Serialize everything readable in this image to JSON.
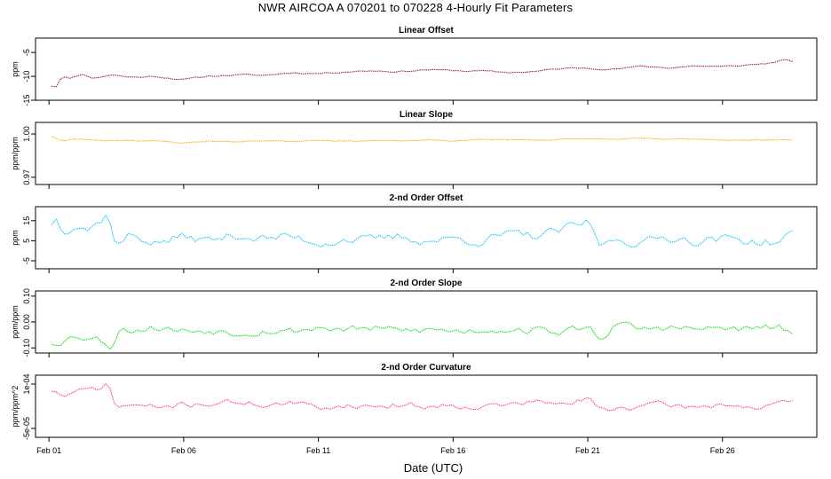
{
  "title": "NWR   AIRCOA A   070201 to 070228   4-Hourly Fit Parameters",
  "colors": {
    "linear_offset": "#b22222",
    "linear_slope": "#ffa500",
    "second_order_offset": "#00bfff",
    "second_order_slope": "#00dd00",
    "second_order_curvature": "#ff3366"
  },
  "chart_data": {
    "type": "line",
    "xlabel": "Date (UTC)",
    "x_range_days": [
      0.5,
      29.5
    ],
    "x_ticks": [
      {
        "day": 1,
        "label": "Feb 01"
      },
      {
        "day": 6,
        "label": "Feb 06"
      },
      {
        "day": 11,
        "label": "Feb 11"
      },
      {
        "day": 16,
        "label": "Feb 16"
      },
      {
        "day": 21,
        "label": "Feb 21"
      },
      {
        "day": 26,
        "label": "Feb 26"
      }
    ],
    "panels": [
      {
        "key": "linear_offset",
        "title": "Linear Offset",
        "ylabel": "ppm",
        "ylim": [
          -15,
          -2
        ],
        "yticks": [
          {
            "v": -15,
            "label": "-15"
          },
          {
            "v": -10,
            "label": "-10"
          },
          {
            "v": -5,
            "label": "-5"
          }
        ],
        "kp": [
          [
            1.1,
            -12.0
          ],
          [
            1.3,
            -12.1
          ],
          [
            1.5,
            -9.6
          ],
          [
            1.8,
            -10.5
          ],
          [
            2.2,
            -9.5
          ],
          [
            2.7,
            -10.4
          ],
          [
            3.3,
            -9.6
          ],
          [
            4,
            -10.2
          ],
          [
            5,
            -10.0
          ],
          [
            6,
            -10.7
          ],
          [
            7,
            -9.9
          ],
          [
            8,
            -9.7
          ],
          [
            9,
            -9.8
          ],
          [
            10,
            -9.2
          ],
          [
            11,
            -9.4
          ],
          [
            12,
            -9.0
          ],
          [
            13,
            -8.8
          ],
          [
            14,
            -9.0
          ],
          [
            15,
            -8.6
          ],
          [
            16,
            -8.8
          ],
          [
            17,
            -8.9
          ],
          [
            18,
            -9.2
          ],
          [
            19,
            -9.0
          ],
          [
            20,
            -8.4
          ],
          [
            21,
            -8.2
          ],
          [
            22,
            -8.5
          ],
          [
            23,
            -7.9
          ],
          [
            24,
            -8.2
          ],
          [
            25,
            -7.8
          ],
          [
            26,
            -8.0
          ],
          [
            27,
            -7.6
          ],
          [
            27.8,
            -7.2
          ],
          [
            28.2,
            -6.6
          ],
          [
            28.6,
            -6.9
          ]
        ],
        "amp": 0.35,
        "seed": 11
      },
      {
        "key": "linear_slope",
        "title": "Linear Slope",
        "ylabel": "ppm/ppm",
        "ylim": [
          0.965,
          1.008
        ],
        "yticks": [
          {
            "v": 0.97,
            "label": "0.97"
          },
          {
            "v": 1.0,
            "label": "1.00"
          }
        ],
        "kp": [
          [
            1.1,
            0.9985
          ],
          [
            1.5,
            0.995
          ],
          [
            2,
            0.9965
          ],
          [
            3,
            0.9955
          ],
          [
            4,
            0.9958
          ],
          [
            5,
            0.995
          ],
          [
            6,
            0.9938
          ],
          [
            7,
            0.9952
          ],
          [
            8,
            0.9945
          ],
          [
            9,
            0.9955
          ],
          [
            10,
            0.9948
          ],
          [
            11,
            0.996
          ],
          [
            12,
            0.995
          ],
          [
            13,
            0.9955
          ],
          [
            14,
            0.995
          ],
          [
            15,
            0.9958
          ],
          [
            16,
            0.9952
          ],
          [
            17,
            0.996
          ],
          [
            18,
            0.9962
          ],
          [
            19,
            0.9958
          ],
          [
            20,
            0.9962
          ],
          [
            21,
            0.9966
          ],
          [
            22,
            0.9963
          ],
          [
            23,
            0.9968
          ],
          [
            24,
            0.9962
          ],
          [
            25,
            0.9966
          ],
          [
            26,
            0.996
          ],
          [
            27,
            0.9956
          ],
          [
            28,
            0.9962
          ],
          [
            28.6,
            0.9958
          ]
        ],
        "amp": 0.0007,
        "seed": 23
      },
      {
        "key": "second_order_offset",
        "title": "2-nd Order Offset",
        "ylabel": "ppm",
        "ylim": [
          -9,
          22
        ],
        "yticks": [
          {
            "v": -5,
            "label": "-5"
          },
          {
            "v": 5,
            "label": "5"
          },
          {
            "v": 15,
            "label": "15"
          }
        ],
        "kp": [
          [
            1.1,
            14
          ],
          [
            1.3,
            16
          ],
          [
            1.5,
            10
          ],
          [
            2,
            14
          ],
          [
            2.5,
            11
          ],
          [
            3,
            16
          ],
          [
            3.2,
            19
          ],
          [
            3.5,
            2
          ],
          [
            4,
            8
          ],
          [
            5,
            4
          ],
          [
            6,
            7
          ],
          [
            7,
            5
          ],
          [
            8,
            8
          ],
          [
            9,
            6
          ],
          [
            10,
            7
          ],
          [
            11,
            4
          ],
          [
            12,
            6
          ],
          [
            13,
            5
          ],
          [
            14,
            7
          ],
          [
            15,
            5
          ],
          [
            16,
            6
          ],
          [
            17,
            5
          ],
          [
            18,
            8
          ],
          [
            19,
            7
          ],
          [
            20,
            10
          ],
          [
            21,
            14
          ],
          [
            21.5,
            2
          ],
          [
            22,
            6
          ],
          [
            23,
            4
          ],
          [
            24,
            7
          ],
          [
            25,
            5
          ],
          [
            26,
            6
          ],
          [
            27,
            5
          ],
          [
            28,
            4
          ],
          [
            28.6,
            8
          ]
        ],
        "amp": 4.5,
        "seed": 37
      },
      {
        "key": "second_order_slope",
        "title": "2-nd Order Slope",
        "ylabel": "ppm/ppm",
        "ylim": [
          -0.12,
          0.12
        ],
        "yticks": [
          {
            "v": -0.1,
            "label": "-0.10"
          },
          {
            "v": 0.0,
            "label": "0.00"
          },
          {
            "v": 0.1,
            "label": "0.10"
          }
        ],
        "kp": [
          [
            1.1,
            -0.08
          ],
          [
            1.5,
            -0.07
          ],
          [
            2,
            -0.05
          ],
          [
            3,
            -0.07
          ],
          [
            3.3,
            -0.1
          ],
          [
            3.6,
            -0.02
          ],
          [
            4,
            -0.03
          ],
          [
            5,
            -0.02
          ],
          [
            6,
            -0.035
          ],
          [
            7,
            -0.03
          ],
          [
            8,
            -0.04
          ],
          [
            9,
            -0.03
          ],
          [
            10,
            -0.035
          ],
          [
            11,
            -0.02
          ],
          [
            12,
            -0.03
          ],
          [
            13,
            -0.025
          ],
          [
            14,
            -0.035
          ],
          [
            15,
            -0.03
          ],
          [
            16,
            -0.035
          ],
          [
            17,
            -0.03
          ],
          [
            18,
            -0.025
          ],
          [
            19,
            -0.03
          ],
          [
            20,
            -0.04
          ],
          [
            21,
            -0.02
          ],
          [
            21.5,
            -0.06
          ],
          [
            22,
            -0.01
          ],
          [
            23,
            -0.03
          ],
          [
            24,
            -0.02
          ],
          [
            25,
            -0.03
          ],
          [
            26,
            -0.025
          ],
          [
            27,
            -0.03
          ],
          [
            28,
            -0.02
          ],
          [
            28.6,
            -0.04
          ]
        ],
        "amp": 0.03,
        "seed": 53
      },
      {
        "key": "second_order_curvature",
        "title": "2-nd Order Curvature",
        "ylabel": "ppm/ppm^2",
        "ylim": [
          -8e-05,
          0.00013
        ],
        "yticks": [
          {
            "v": -5e-05,
            "label": "-5e-05"
          },
          {
            "v": 0.0001,
            "label": "1e-04"
          }
        ],
        "kp": [
          [
            1.1,
            8e-05
          ],
          [
            1.5,
            6e-05
          ],
          [
            2,
            7e-05
          ],
          [
            3,
            9e-05
          ],
          [
            3.2,
            0.0001
          ],
          [
            3.5,
            2e-05
          ],
          [
            4,
            3e-05
          ],
          [
            5,
            2e-05
          ],
          [
            6,
            3e-05
          ],
          [
            7,
            3.5e-05
          ],
          [
            8,
            4e-05
          ],
          [
            9,
            3e-05
          ],
          [
            10,
            3.5e-05
          ],
          [
            11,
            2e-05
          ],
          [
            12,
            3e-05
          ],
          [
            13,
            2.5e-05
          ],
          [
            14,
            3e-05
          ],
          [
            15,
            2.5e-05
          ],
          [
            16,
            3e-05
          ],
          [
            17,
            2.5e-05
          ],
          [
            18,
            3e-05
          ],
          [
            19,
            4e-05
          ],
          [
            20,
            3e-05
          ],
          [
            21,
            5e-05
          ],
          [
            21.5,
            1e-05
          ],
          [
            22,
            2e-05
          ],
          [
            23,
            2.5e-05
          ],
          [
            24,
            3e-05
          ],
          [
            25,
            2e-05
          ],
          [
            26,
            3.5e-05
          ],
          [
            27,
            2e-05
          ],
          [
            28,
            2.5e-05
          ],
          [
            28.6,
            4e-05
          ]
        ],
        "amp": 2e-05,
        "seed": 71
      }
    ]
  }
}
